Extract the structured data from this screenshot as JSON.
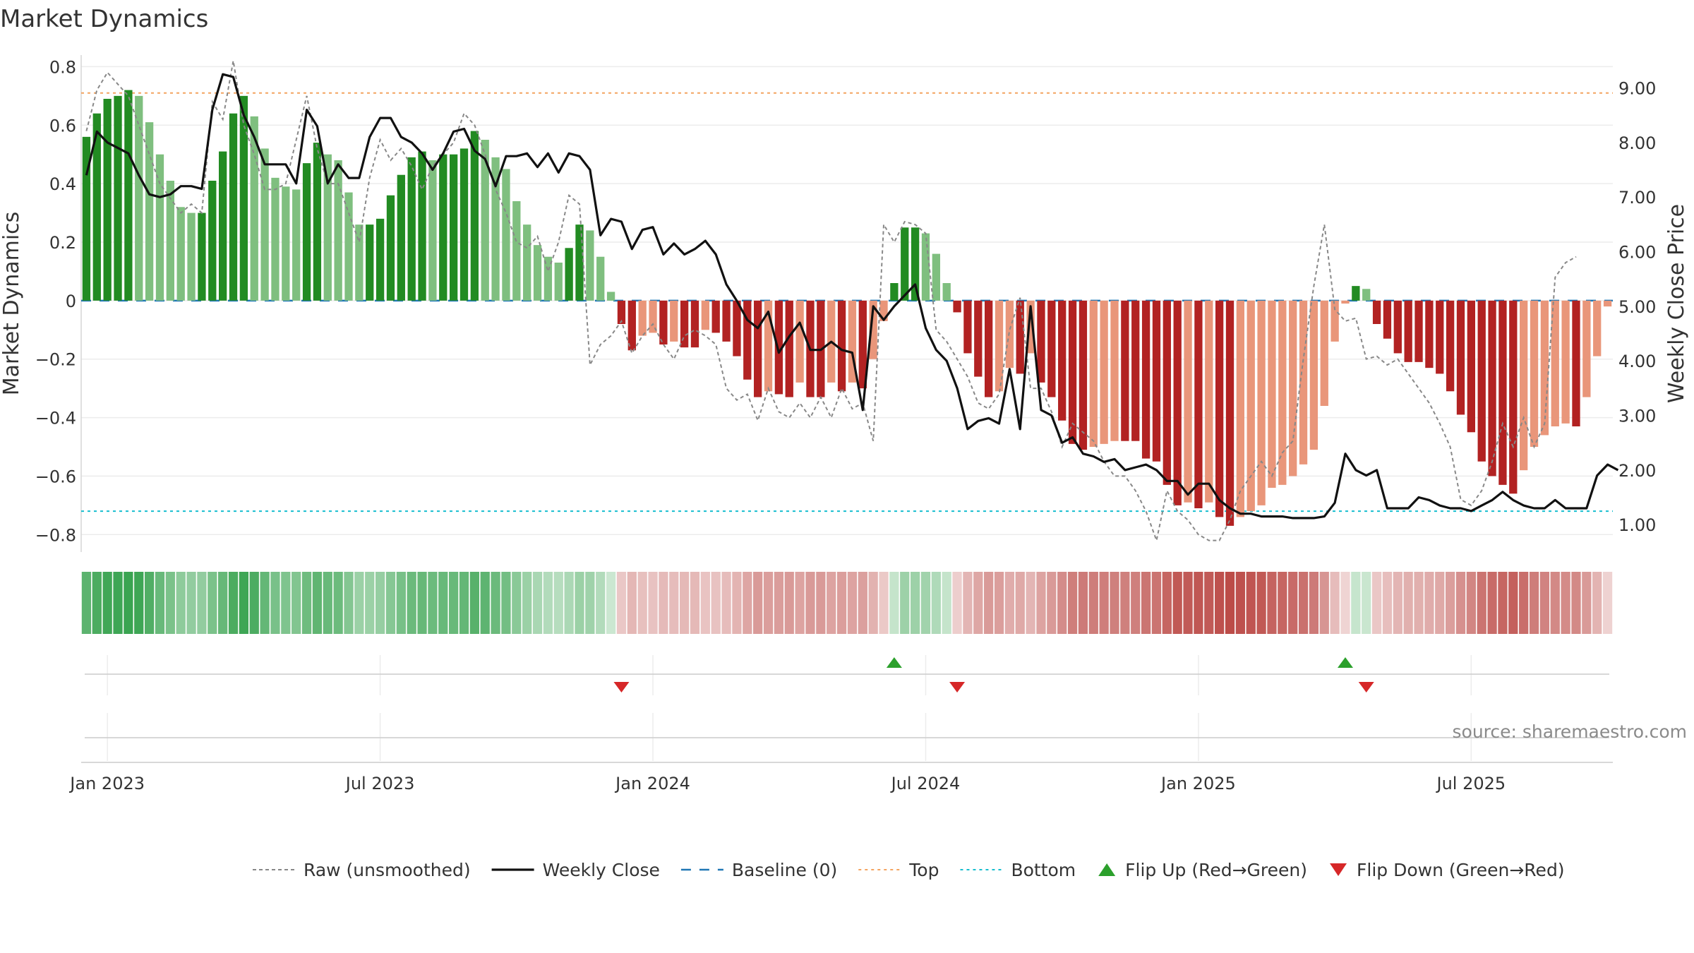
{
  "chart_data": {
    "type": "bar",
    "title": "Market Dynamics",
    "ylabel_left": "Market Dynamics",
    "ylabel_right": "Weekly Close Price",
    "source": "source: sharemaestro.com",
    "ylim_left": [
      -0.85,
      0.83
    ],
    "ylim_right": [
      0.55,
      9.55
    ],
    "yticks_left": [
      "0.8",
      "0.6",
      "0.4",
      "0.2",
      "0",
      "−0.2",
      "−0.4",
      "−0.6",
      "−0.8"
    ],
    "yticks_left_values": [
      0.8,
      0.6,
      0.4,
      0.2,
      0,
      -0.2,
      -0.4,
      -0.6,
      -0.8
    ],
    "yticks_right": [
      "9.00",
      "8.00",
      "7.00",
      "6.00",
      "5.00",
      "4.00",
      "3.00",
      "2.00",
      "1.00"
    ],
    "yticks_right_values": [
      9,
      8,
      7,
      6,
      5,
      4,
      3,
      2,
      1
    ],
    "xticks": [
      "Jan 2023",
      "Jul 2023",
      "Jan 2024",
      "Jul 2024",
      "Jan 2025",
      "Jul 2025"
    ],
    "xticks_week_index": [
      2,
      28,
      54,
      80,
      106,
      132
    ],
    "top_level": 0.71,
    "bottom_level": -0.72,
    "baseline": 0,
    "grid": true,
    "legend_position": "bottom",
    "colors": {
      "green_strong": "#228b22",
      "green_light": "#7fbf7f",
      "red_strong": "#b22222",
      "red_light": "#e9967a",
      "close_line": "#111111",
      "raw_line": "#888888",
      "baseline": "#1f77b4",
      "top": "#f4a460",
      "bottom": "#17becf",
      "flip_up": "#2ca02c",
      "flip_down": "#d62728"
    },
    "series": [
      {
        "name": "Market Dynamics",
        "values": [
          0.56,
          0.64,
          0.69,
          0.7,
          0.72,
          0.7,
          0.61,
          0.5,
          0.41,
          0.32,
          0.3,
          0.3,
          0.41,
          0.51,
          0.64,
          0.7,
          0.63,
          0.52,
          0.42,
          0.39,
          0.38,
          0.47,
          0.54,
          0.5,
          0.48,
          0.37,
          0.26,
          0.26,
          0.28,
          0.36,
          0.43,
          0.49,
          0.51,
          0.48,
          0.5,
          0.5,
          0.52,
          0.58,
          0.55,
          0.49,
          0.45,
          0.34,
          0.26,
          0.19,
          0.15,
          0.13,
          0.18,
          0.26,
          0.24,
          0.15,
          0.03,
          -0.08,
          -0.17,
          -0.12,
          -0.11,
          -0.15,
          -0.14,
          -0.16,
          -0.16,
          -0.1,
          -0.11,
          -0.14,
          -0.19,
          -0.27,
          -0.33,
          -0.31,
          -0.32,
          -0.33,
          -0.28,
          -0.33,
          -0.33,
          -0.28,
          -0.31,
          -0.28,
          -0.3,
          -0.2,
          -0.07,
          0.06,
          0.25,
          0.25,
          0.23,
          0.16,
          0.06,
          -0.04,
          -0.18,
          -0.26,
          -0.33,
          -0.31,
          -0.23,
          -0.25,
          -0.18,
          -0.28,
          -0.33,
          -0.41,
          -0.49,
          -0.51,
          -0.5,
          -0.49,
          -0.48,
          -0.48,
          -0.48,
          -0.54,
          -0.55,
          -0.63,
          -0.7,
          -0.69,
          -0.71,
          -0.69,
          -0.74,
          -0.77,
          -0.74,
          -0.72,
          -0.7,
          -0.64,
          -0.63,
          -0.6,
          -0.56,
          -0.51,
          -0.36,
          -0.14,
          -0.01,
          0.05,
          0.04,
          -0.08,
          -0.13,
          -0.18,
          -0.21,
          -0.21,
          -0.23,
          -0.25,
          -0.31,
          -0.39,
          -0.45,
          -0.55,
          -0.6,
          -0.63,
          -0.66,
          -0.58,
          -0.5,
          -0.46,
          -0.43,
          -0.42,
          -0.43,
          -0.33,
          -0.19,
          -0.02
        ]
      },
      {
        "name": "Raw (unsmoothed)",
        "values": [
          0.58,
          0.72,
          0.78,
          0.74,
          0.7,
          0.6,
          0.5,
          0.4,
          0.35,
          0.3,
          0.33,
          0.3,
          0.68,
          0.62,
          0.82,
          0.6,
          0.5,
          0.38,
          0.38,
          0.4,
          0.55,
          0.7,
          0.52,
          0.4,
          0.4,
          0.3,
          0.2,
          0.42,
          0.55,
          0.48,
          0.52,
          0.46,
          0.38,
          0.46,
          0.5,
          0.54,
          0.64,
          0.6,
          0.5,
          0.38,
          0.3,
          0.2,
          0.18,
          0.22,
          0.1,
          0.2,
          0.36,
          0.33,
          -0.22,
          -0.15,
          -0.12,
          -0.07,
          -0.18,
          -0.12,
          -0.08,
          -0.15,
          -0.2,
          -0.12,
          -0.1,
          -0.12,
          -0.15,
          -0.3,
          -0.34,
          -0.32,
          -0.41,
          -0.3,
          -0.38,
          -0.4,
          -0.35,
          -0.4,
          -0.33,
          -0.4,
          -0.3,
          -0.37,
          -0.35,
          -0.48,
          0.26,
          0.2,
          0.27,
          0.26,
          0.23,
          -0.1,
          -0.14,
          -0.2,
          -0.26,
          -0.35,
          -0.37,
          -0.32,
          -0.1,
          0.01,
          -0.3,
          -0.3,
          -0.38,
          -0.5,
          -0.42,
          -0.45,
          -0.48,
          -0.55,
          -0.6,
          -0.6,
          -0.65,
          -0.72,
          -0.82,
          -0.65,
          -0.72,
          -0.75,
          -0.8,
          -0.82,
          -0.82,
          -0.75,
          -0.65,
          -0.6,
          -0.55,
          -0.6,
          -0.52,
          -0.48,
          -0.2,
          0.05,
          0.26,
          -0.03,
          -0.07,
          -0.06,
          -0.2,
          -0.19,
          -0.22,
          -0.2,
          -0.25,
          -0.3,
          -0.35,
          -0.42,
          -0.5,
          -0.68,
          -0.7,
          -0.65,
          -0.55,
          -0.42,
          -0.5,
          -0.4,
          -0.5,
          -0.42,
          0.08,
          0.13,
          0.15
        ]
      },
      {
        "name": "Weekly Close",
        "values": [
          7.4,
          8.2,
          8.0,
          7.9,
          7.8,
          7.4,
          7.05,
          7.0,
          7.05,
          7.2,
          7.2,
          7.15,
          8.6,
          9.25,
          9.2,
          8.5,
          8.1,
          7.6,
          7.6,
          7.6,
          7.25,
          8.6,
          8.3,
          7.25,
          7.6,
          7.35,
          7.35,
          8.1,
          8.45,
          8.45,
          8.1,
          8.0,
          7.8,
          7.5,
          7.8,
          8.2,
          8.25,
          7.85,
          7.7,
          7.2,
          7.75,
          7.75,
          7.8,
          7.55,
          7.8,
          7.45,
          7.8,
          7.75,
          7.5,
          6.3,
          6.6,
          6.55,
          6.05,
          6.4,
          6.45,
          5.95,
          6.15,
          5.95,
          6.05,
          6.2,
          5.95,
          5.4,
          5.1,
          4.75,
          4.6,
          4.9,
          4.15,
          4.45,
          4.7,
          4.2,
          4.2,
          4.35,
          4.2,
          4.15,
          3.1,
          5.0,
          4.75,
          5.0,
          5.2,
          5.4,
          4.6,
          4.2,
          4.0,
          3.5,
          2.75,
          2.9,
          2.95,
          2.85,
          3.85,
          2.75,
          5.0,
          3.1,
          3.0,
          2.5,
          2.6,
          2.3,
          2.25,
          2.15,
          2.2,
          2.0,
          2.05,
          2.1,
          2.0,
          1.8,
          1.8,
          1.55,
          1.75,
          1.75,
          1.45,
          1.3,
          1.2,
          1.2,
          1.15,
          1.15,
          1.15,
          1.12,
          1.12,
          1.12,
          1.15,
          1.4,
          2.3,
          2.0,
          1.9,
          2.0,
          1.3,
          1.3,
          1.3,
          1.5,
          1.45,
          1.35,
          1.3,
          1.3,
          1.25,
          1.35,
          1.45,
          1.6,
          1.45,
          1.35,
          1.3,
          1.3,
          1.45,
          1.3,
          1.3,
          1.3,
          1.9,
          2.1,
          2.0
        ]
      }
    ],
    "flip_up_weeks": [
      77,
      120
    ],
    "flip_down_weeks": [
      51,
      83,
      122
    ],
    "legend": [
      {
        "key": "raw",
        "label": "Raw (unsmoothed)"
      },
      {
        "key": "close",
        "label": "Weekly Close"
      },
      {
        "key": "baseline",
        "label": "Baseline (0)"
      },
      {
        "key": "top",
        "label": "Top"
      },
      {
        "key": "bottom",
        "label": "Bottom"
      },
      {
        "key": "flip_up",
        "label": "Flip Up (Red→Green)"
      },
      {
        "key": "flip_down",
        "label": "Flip Down (Green→Red)"
      }
    ]
  }
}
